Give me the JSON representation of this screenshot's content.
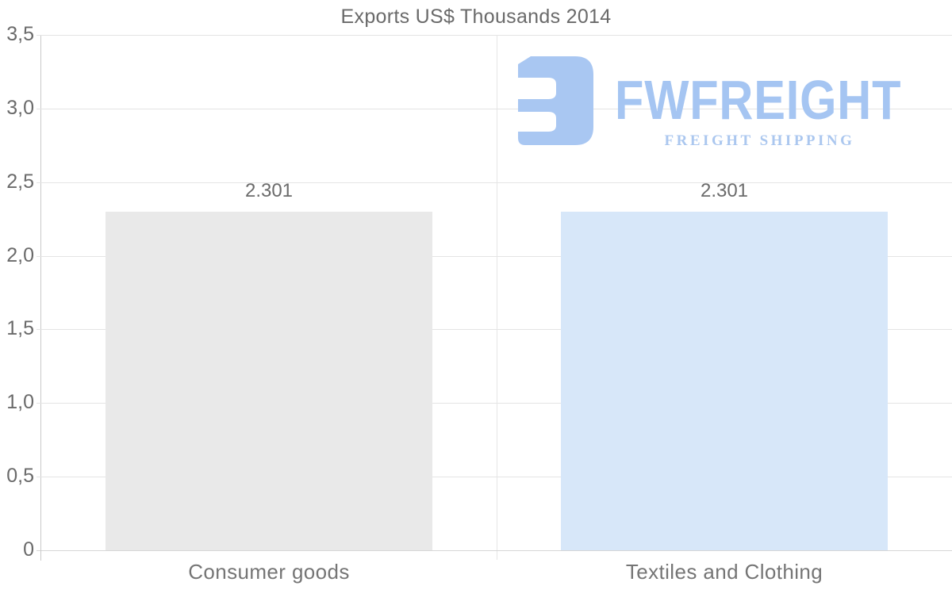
{
  "chart_data": {
    "type": "bar",
    "title": "Exports US$ Thousands 2014",
    "categories": [
      "Consumer goods",
      "Textiles and Clothing"
    ],
    "values": [
      2.301,
      2.301
    ],
    "value_labels": [
      "2.301",
      "2.301"
    ],
    "series": [
      {
        "name": "Exports US$ Thousands 2014",
        "values": [
          2.301,
          2.301
        ]
      }
    ],
    "bar_colors": [
      "#e9e9e9",
      "#d7e7f9"
    ],
    "ylim": [
      0,
      3.5
    ],
    "y_ticks": [
      {
        "value": 0,
        "label": "0"
      },
      {
        "value": 0.5,
        "label": "0,5"
      },
      {
        "value": 1,
        "label": "1,0"
      },
      {
        "value": 1.5,
        "label": "1,5"
      },
      {
        "value": 2,
        "label": "2,0"
      },
      {
        "value": 2.5,
        "label": "2,5"
      },
      {
        "value": 3,
        "label": "3,0"
      },
      {
        "value": 3.5,
        "label": "3,5"
      }
    ],
    "grid": true,
    "legend": false,
    "xlabel": "",
    "ylabel": ""
  },
  "watermark": {
    "brand": "FWFREIGHT",
    "tagline": "FREIGHT SHIPPING",
    "mark_color": "#a9c7f2",
    "brand_color": "#a5c5f2",
    "tagline_color": "#abc7ef"
  },
  "colors": {
    "background": "#ffffff",
    "title_text": "#6a6a6a",
    "tick_text": "#6a6a6a",
    "category_text": "#757575",
    "value_text": "#6b6b6b",
    "gridline": "#e4e4e4",
    "axis_line": "#c9c9c9",
    "baseline": "#d6d6d6"
  }
}
